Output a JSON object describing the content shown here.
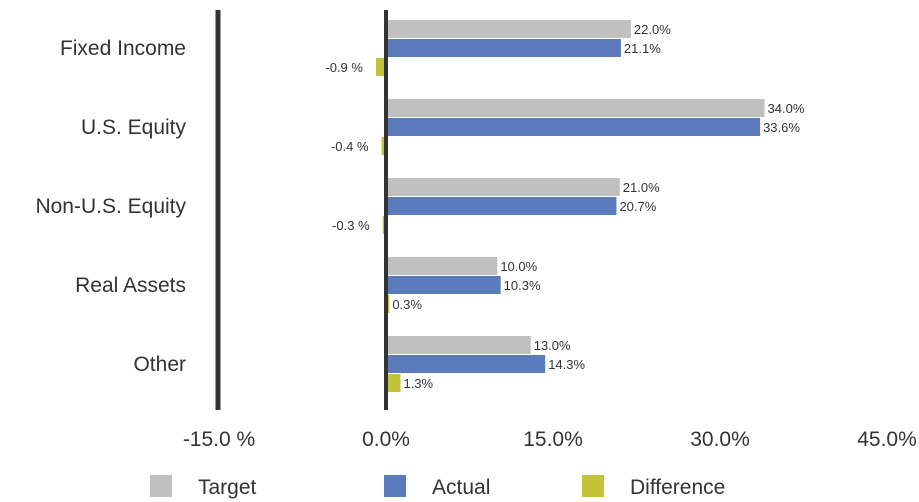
{
  "chart_data": {
    "type": "bar",
    "orientation": "horizontal",
    "categories": [
      "Fixed Income",
      "U.S. Equity",
      "Non-U.S. Equity",
      "Real Assets",
      "Other"
    ],
    "series": [
      {
        "name": "Target",
        "color": "#c0c0c0",
        "values": [
          22.0,
          34.0,
          21.0,
          10.0,
          13.0
        ],
        "labels": [
          "22.0%",
          "34.0%",
          "21.0%",
          "10.0%",
          "13.0%"
        ]
      },
      {
        "name": "Actual",
        "color": "#5b7bbd",
        "values": [
          21.1,
          33.6,
          20.7,
          10.3,
          14.3
        ],
        "labels": [
          "21.1%",
          "33.6%",
          "20.7%",
          "10.3%",
          "14.3%"
        ]
      },
      {
        "name": "Difference",
        "color": "#c3c33a",
        "values": [
          -0.9,
          -0.4,
          -0.3,
          0.3,
          1.3
        ],
        "labels": [
          "-0.9 %",
          "-0.4 %",
          "-0.3 %",
          "0.3%",
          "1.3%"
        ]
      }
    ],
    "xlim": [
      -15,
      45
    ],
    "xticks": [
      -15,
      0,
      15,
      30,
      45
    ],
    "xtick_labels": [
      "-15.0 %",
      "0.0%",
      "15.0%",
      "30.0%",
      "45.0%"
    ],
    "legend": "bottom",
    "grid": false
  }
}
